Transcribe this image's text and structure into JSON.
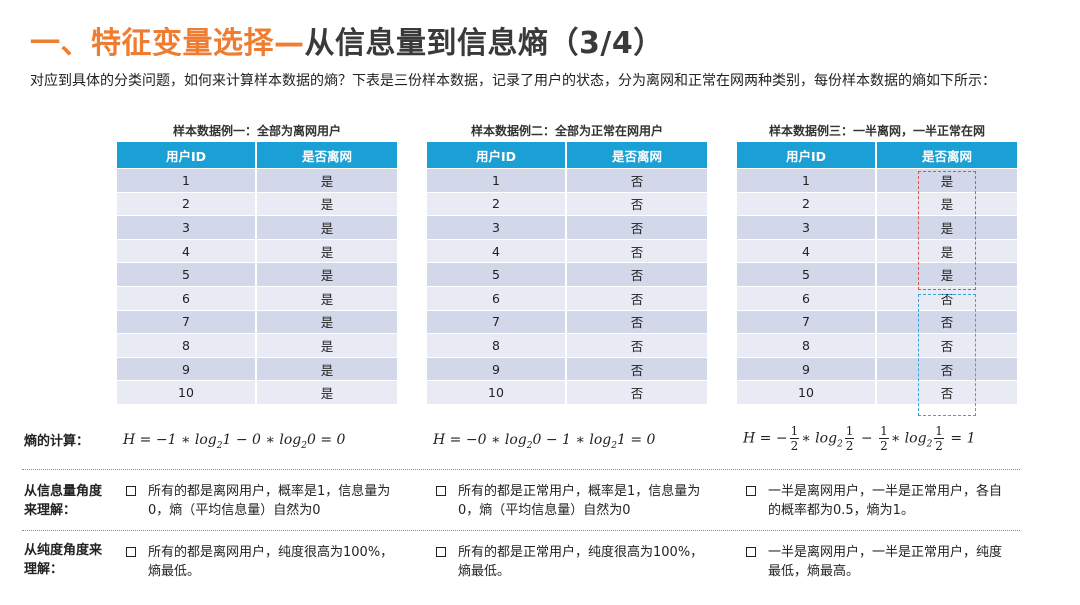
{
  "title": {
    "part1": "一、特征变量选择—",
    "part2": "从信息量到信息熵（3/4）"
  },
  "intro": "对应到具体的分类问题，如何来计算样本数据的熵？下表是三份样本数据，记录了用户的状态，分为离网和正常在网两种类别，每份样本数据的熵如下所示：",
  "tables": [
    {
      "caption": "样本数据例一：全部为离网用户",
      "headers": [
        "用户ID",
        "是否离网"
      ],
      "rows": [
        [
          "1",
          "是"
        ],
        [
          "2",
          "是"
        ],
        [
          "3",
          "是"
        ],
        [
          "4",
          "是"
        ],
        [
          "5",
          "是"
        ],
        [
          "6",
          "是"
        ],
        [
          "7",
          "是"
        ],
        [
          "8",
          "是"
        ],
        [
          "9",
          "是"
        ],
        [
          "10",
          "是"
        ]
      ]
    },
    {
      "caption": "样本数据例二：全部为正常在网用户",
      "headers": [
        "用户ID",
        "是否离网"
      ],
      "rows": [
        [
          "1",
          "否"
        ],
        [
          "2",
          "否"
        ],
        [
          "3",
          "否"
        ],
        [
          "4",
          "否"
        ],
        [
          "5",
          "否"
        ],
        [
          "6",
          "否"
        ],
        [
          "7",
          "否"
        ],
        [
          "8",
          "否"
        ],
        [
          "9",
          "否"
        ],
        [
          "10",
          "否"
        ]
      ]
    },
    {
      "caption": "样本数据例三：一半离网，一半正常在网",
      "headers": [
        "用户ID",
        "是否离网"
      ],
      "rows": [
        [
          "1",
          "是"
        ],
        [
          "2",
          "是"
        ],
        [
          "3",
          "是"
        ],
        [
          "4",
          "是"
        ],
        [
          "5",
          "是"
        ],
        [
          "6",
          "否"
        ],
        [
          "7",
          "否"
        ],
        [
          "8",
          "否"
        ],
        [
          "9",
          "否"
        ],
        [
          "10",
          "否"
        ]
      ]
    }
  ],
  "labels": {
    "entropy_calc": "熵的计算：",
    "info_view": "从信息量角度来理解：",
    "purity_view": "从纯度角度来理解："
  },
  "formulas": {
    "f1": {
      "lhs": "H = −1 ∗ log",
      "m1": "1 − 0 ∗ log",
      "m2": "0 = 0",
      "sub": "2"
    },
    "f2": {
      "lhs": "H = −0 ∗ log",
      "m1": "0 − 1 ∗ log",
      "m2": "1 = 0",
      "sub": "2"
    },
    "f3": {
      "lhs": "H = −",
      "num": "1",
      "den": "2",
      "mul": "∗ log",
      "minus": "−",
      "eq": "= 1",
      "sub": "2"
    }
  },
  "info_bullets": [
    "所有的都是离网用户，概率是1，信息量为0，熵（平均信息量）自然为0",
    "所有的都是正常用户，概率是1，信息量为0，熵（平均信息量）自然为0",
    "一半是离网用户，一半是正常用户，各自的概率都为0.5，熵为1。"
  ],
  "purity_bullets": [
    "所有的都是离网用户，纯度很高为100%，熵最低。",
    "所有的都是正常用户，纯度很高为100%，熵最低。",
    "一半是离网用户，一半是正常用户，纯度最低，熵最高。"
  ],
  "colors": {
    "accent_orange": "#ee7d31",
    "table_header": "#1aa0d4",
    "row_odd": "#d2d8ea",
    "row_even": "#e8ebf4"
  }
}
